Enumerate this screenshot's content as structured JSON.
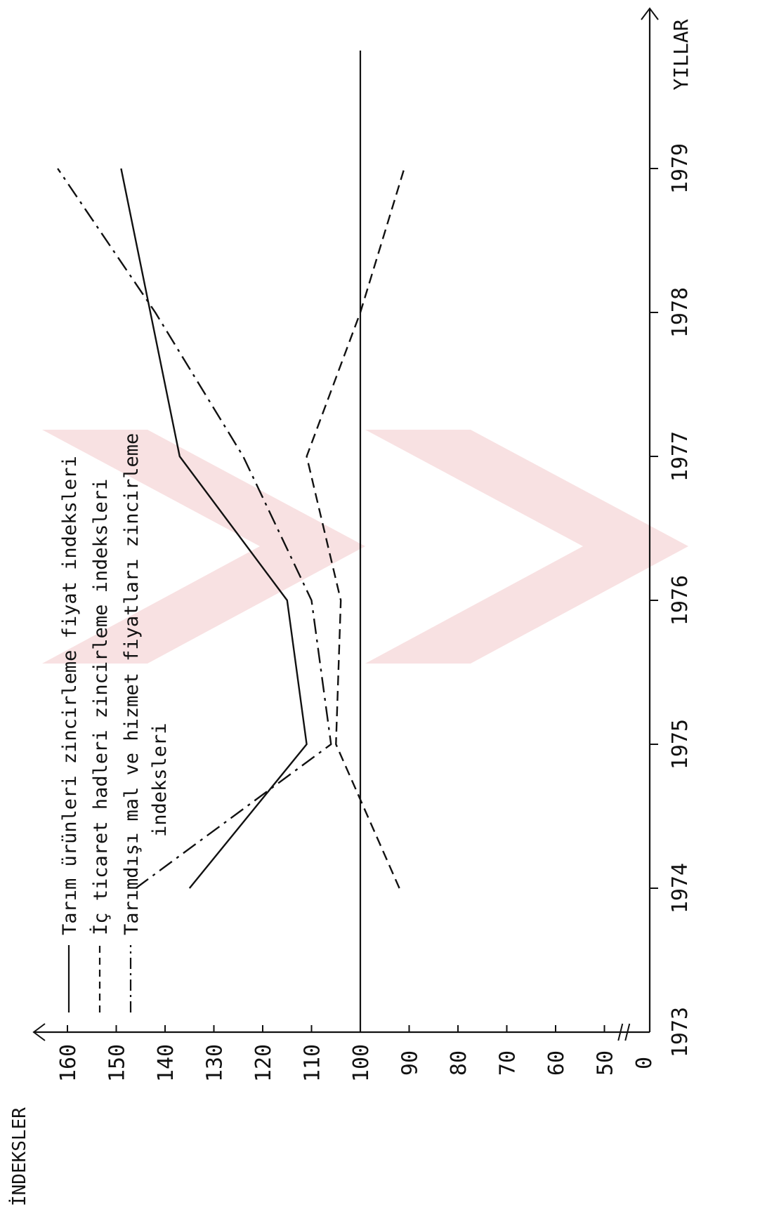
{
  "chart_data": {
    "type": "line",
    "orientation": "rotated-90-ccw",
    "xlabel": "YILLAR",
    "ylabel": "İNDEKSLER",
    "x_ticks": [
      "1973",
      "1974",
      "1975",
      "1976",
      "1977",
      "1978",
      "1979"
    ],
    "y_ticks": [
      0,
      50,
      60,
      70,
      80,
      90,
      100,
      110,
      120,
      130,
      140,
      150,
      160
    ],
    "y_axis_break": "between 0 and 50",
    "xlim": [
      1973,
      1980
    ],
    "reference_line": 100,
    "legend_placement": "top-left (along value axis)",
    "series": [
      {
        "name": "Tarım ürünleri zincirleme fiyat indeksleri",
        "style": "solid",
        "x": [
          1974,
          1975,
          1976,
          1977,
          1978,
          1979
        ],
        "values": [
          135,
          111,
          115,
          137,
          143,
          149
        ]
      },
      {
        "name": "İç ticaret hadleri zincirleme indeksleri",
        "style": "dashed",
        "x": [
          1974,
          1975,
          1976,
          1977,
          1978,
          1979
        ],
        "values": [
          92,
          105,
          104,
          111,
          100,
          91
        ]
      },
      {
        "name": "Tarımdışı mal ve hizmet fiyatları zincirleme indeksleri",
        "style": "dash-dot",
        "x": [
          1974,
          1975,
          1976,
          1977,
          1978,
          1979
        ],
        "values": [
          146,
          106,
          110,
          124,
          142,
          162
        ]
      }
    ]
  }
}
